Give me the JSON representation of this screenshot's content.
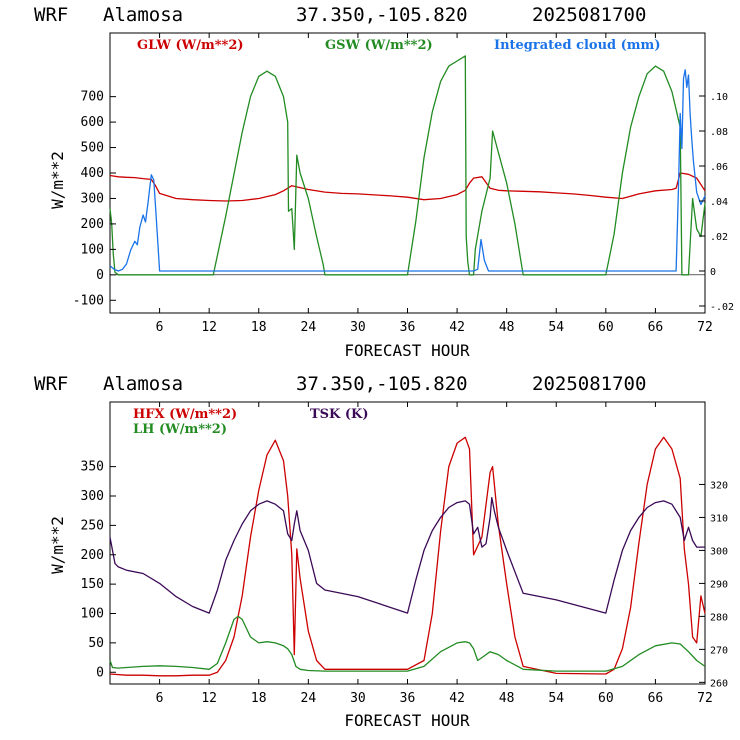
{
  "chart_data": [
    {
      "type": "line",
      "title": {
        "model": "WRF",
        "location": "Alamosa",
        "coords": "37.350,-105.820",
        "init": "2025081700"
      },
      "xlabel": "FORECAST HOUR",
      "ylabel": "W/m**2",
      "xlim": [
        0,
        72
      ],
      "ylim": [
        -150,
        950
      ],
      "x_ticks": [
        6,
        12,
        18,
        24,
        30,
        36,
        42,
        48,
        54,
        60,
        66,
        72
      ],
      "y_ticks": [
        -100,
        0,
        100,
        200,
        300,
        400,
        500,
        600,
        700
      ],
      "y2lim": [
        -0.024,
        0.136
      ],
      "y2_ticks": [
        {
          "v": -0.02,
          "label": "-.02"
        },
        {
          "v": 0,
          "label": "0"
        },
        {
          "v": 0.02,
          "label": ".02"
        },
        {
          "v": 0.04,
          "label": ".04"
        },
        {
          "v": 0.06,
          "label": ".06"
        },
        {
          "v": 0.08,
          "label": ".08"
        },
        {
          "v": 0.1,
          "label": ".10"
        }
      ],
      "series": [
        {
          "name": "GLW (W/m**2)",
          "color": "#cc0000",
          "axis": "left",
          "x": [
            0,
            1,
            2,
            3,
            4,
            5,
            5.5,
            6,
            8,
            10,
            12,
            14,
            16,
            18,
            20,
            21,
            22,
            24,
            26,
            28,
            30,
            32,
            34,
            36,
            38,
            40,
            42,
            43,
            43.5,
            44,
            45,
            46,
            47,
            48,
            50,
            52,
            54,
            56,
            58,
            60,
            62,
            64,
            66,
            68,
            68.5,
            69,
            70,
            71,
            72
          ],
          "y": [
            390,
            385,
            383,
            382,
            378,
            375,
            350,
            320,
            300,
            295,
            292,
            290,
            292,
            300,
            315,
            330,
            350,
            335,
            325,
            320,
            318,
            314,
            310,
            305,
            295,
            300,
            315,
            332,
            360,
            380,
            385,
            340,
            332,
            330,
            328,
            326,
            322,
            318,
            312,
            305,
            300,
            318,
            330,
            335,
            340,
            400,
            395,
            380,
            330
          ]
        },
        {
          "name": "GSW (W/m**2)",
          "color": "#228b22",
          "axis": "left",
          "x": [
            0,
            0.2,
            0.4,
            0.6,
            1,
            12.5,
            14,
            16,
            17,
            18,
            19,
            20,
            21,
            21.5,
            21.6,
            22,
            22.3,
            22.6,
            23,
            24,
            25,
            25.8,
            26,
            36,
            37,
            38,
            39,
            40,
            41,
            42,
            43,
            43.1,
            43.3,
            43.5,
            44,
            44.2,
            45,
            46,
            46.3,
            47,
            48,
            49,
            49.8,
            50,
            60,
            61,
            62,
            63,
            64,
            65,
            66,
            67,
            68,
            69,
            69.2,
            70,
            70.5,
            71,
            71.5,
            72
          ],
          "y": [
            260,
            200,
            80,
            10,
            0,
            0,
            230,
            560,
            700,
            780,
            800,
            780,
            700,
            600,
            250,
            260,
            100,
            470,
            400,
            300,
            150,
            40,
            0,
            0,
            210,
            460,
            640,
            760,
            820,
            840,
            860,
            150,
            50,
            0,
            0,
            100,
            250,
            380,
            565,
            480,
            360,
            200,
            40,
            0,
            0,
            160,
            400,
            580,
            700,
            790,
            820,
            800,
            720,
            580,
            0,
            0,
            300,
            180,
            150,
            280
          ]
        },
        {
          "name": "Integrated cloud (mm)",
          "color": "#1a73e8",
          "axis": "right",
          "x": [
            0,
            0.5,
            1,
            1.5,
            2,
            2.5,
            3,
            3.3,
            3.6,
            4,
            4.3,
            4.6,
            5,
            5.3,
            5.6,
            6,
            6.5,
            44,
            44.5,
            44.9,
            45.3,
            45.8,
            46.5,
            68.5,
            68.8,
            69,
            69.2,
            69.4,
            69.6,
            69.8,
            70,
            70.2,
            70.4,
            70.6,
            71,
            71.5,
            72
          ],
          "y": [
            0.003,
            0.001,
            0,
            0.001,
            0.004,
            0.012,
            0.017,
            0.015,
            0.025,
            0.032,
            0.028,
            0.039,
            0.055,
            0.052,
            0.03,
            0,
            0,
            0,
            0.001,
            0.018,
            0.006,
            0,
            0,
            0,
            0.05,
            0.09,
            0.07,
            0.11,
            0.115,
            0.105,
            0.112,
            0.09,
            0.075,
            0.063,
            0.045,
            0.038,
            0.043
          ]
        }
      ]
    },
    {
      "type": "line",
      "title": {
        "model": "WRF",
        "location": "Alamosa",
        "coords": "37.350,-105.820",
        "init": "2025081700"
      },
      "xlabel": "FORECAST HOUR",
      "ylabel": "W/m**2",
      "xlim": [
        0,
        72
      ],
      "ylim": [
        -20,
        460
      ],
      "x_ticks": [
        6,
        12,
        18,
        24,
        30,
        36,
        42,
        48,
        54,
        60,
        66,
        72
      ],
      "y_ticks": [
        0,
        50,
        100,
        150,
        200,
        250,
        300,
        350
      ],
      "y2lim": [
        259.5,
        345
      ],
      "y2_ticks": [
        {
          "v": 260,
          "label": "260"
        },
        {
          "v": 270,
          "label": "270"
        },
        {
          "v": 280,
          "label": "280"
        },
        {
          "v": 290,
          "label": "290"
        },
        {
          "v": 300,
          "label": "300"
        },
        {
          "v": 310,
          "label": "310"
        },
        {
          "v": 320,
          "label": "320"
        }
      ],
      "series": [
        {
          "name": "HFX (W/m**2)",
          "color": "#cc0000",
          "axis": "left",
          "x": [
            0,
            2,
            4,
            6,
            8,
            10,
            12,
            13,
            14,
            15,
            16,
            17,
            18,
            19,
            20,
            21,
            21.5,
            22,
            22.3,
            22.6,
            23,
            24,
            25,
            26,
            30,
            36,
            38,
            39,
            40,
            41,
            42,
            43,
            43.5,
            44,
            45,
            46,
            46.3,
            47,
            48,
            49,
            50,
            54,
            60,
            61,
            62,
            63,
            64,
            65,
            66,
            67,
            68,
            69,
            69.5,
            70,
            70.5,
            71,
            71.5,
            72
          ],
          "y": [
            -3,
            -5,
            -5,
            -6,
            -6,
            -5,
            -5,
            0,
            20,
            60,
            130,
            230,
            310,
            370,
            395,
            360,
            300,
            200,
            30,
            210,
            160,
            70,
            20,
            5,
            5,
            5,
            20,
            100,
            240,
            350,
            390,
            400,
            380,
            200,
            230,
            340,
            350,
            250,
            150,
            60,
            10,
            -2,
            -3,
            5,
            40,
            110,
            220,
            320,
            380,
            400,
            380,
            330,
            210,
            150,
            60,
            50,
            130,
            100
          ]
        },
        {
          "name": "LH (W/m**2)",
          "color": "#228b22",
          "axis": "left",
          "x": [
            0,
            0.3,
            1,
            2,
            4,
            6,
            8,
            10,
            12,
            13,
            14,
            15,
            15.5,
            16,
            17,
            18,
            19,
            20,
            21,
            21.5,
            22,
            22.5,
            23,
            24,
            26,
            30,
            36,
            38,
            40,
            42,
            43,
            43.5,
            44,
            44.5,
            45,
            46,
            47,
            48,
            50,
            54,
            60,
            62,
            64,
            66,
            68,
            69,
            70,
            71,
            72
          ],
          "y": [
            20,
            8,
            7,
            8,
            10,
            11,
            10,
            8,
            5,
            15,
            50,
            90,
            95,
            90,
            60,
            50,
            52,
            50,
            45,
            40,
            30,
            10,
            5,
            3,
            2,
            2,
            2,
            10,
            35,
            50,
            52,
            50,
            40,
            20,
            25,
            35,
            30,
            20,
            5,
            2,
            2,
            10,
            30,
            45,
            50,
            48,
            35,
            20,
            10
          ]
        },
        {
          "name": "TSK (K)",
          "color": "#3b0a57",
          "axis": "right",
          "x": [
            0,
            0.3,
            0.6,
            1,
            2,
            4,
            6,
            8,
            10,
            12,
            13,
            14,
            15,
            16,
            17,
            18,
            19,
            20,
            21,
            21.5,
            22,
            22.3,
            22.6,
            23,
            24,
            25,
            26,
            30,
            36,
            37,
            38,
            39,
            40,
            41,
            42,
            43,
            43.5,
            44,
            44.5,
            45,
            45.5,
            46,
            46.2,
            46.5,
            47,
            48,
            50,
            54,
            60,
            61,
            62,
            63,
            64,
            65,
            66,
            67,
            68,
            69,
            69.5,
            70,
            70.5,
            71,
            72
          ],
          "y": [
            304,
            300,
            296,
            295,
            294,
            293,
            290,
            286,
            283,
            281,
            288,
            297,
            303,
            308,
            312,
            314,
            315,
            314,
            312,
            305,
            303,
            308,
            312,
            306,
            300,
            290,
            288,
            286,
            281,
            291,
            300,
            306,
            310,
            313,
            314.5,
            315,
            314,
            305,
            307,
            301,
            302,
            310,
            316,
            312,
            307,
            300,
            287,
            285,
            281,
            291,
            300,
            306,
            310,
            313,
            314.5,
            315,
            314,
            310,
            303,
            307,
            303,
            301,
            301
          ]
        }
      ]
    }
  ]
}
